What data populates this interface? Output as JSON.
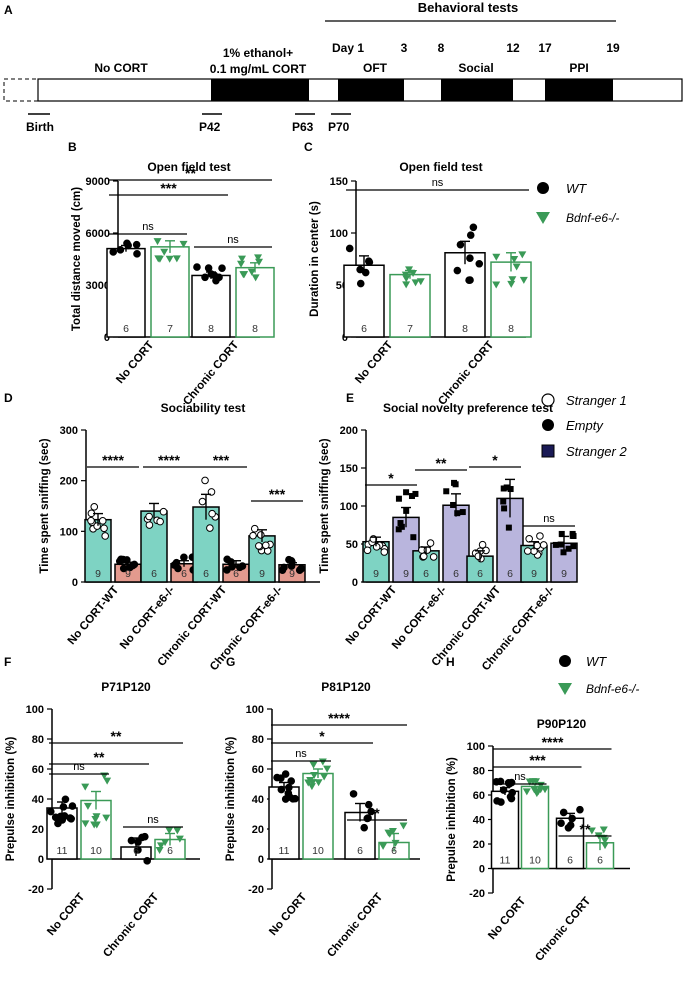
{
  "colors": {
    "black": "#000000",
    "green": "#3a9a57",
    "teal": "#7ed3c3",
    "salmon": "#e39a8e",
    "lavender": "#b9b5dd"
  },
  "timeline": {
    "panel": "A",
    "header": "Behavioral tests",
    "days": [
      "Day 1",
      "3",
      "8",
      "12",
      "17",
      "19"
    ],
    "phase_no_cort": "No CORT",
    "phase_cort_line1": "1% ethanol+",
    "phase_cort_line2": "0.1 mg/mL CORT",
    "tests": [
      "OFT",
      "Social",
      "PPI"
    ],
    "milestones": [
      "Birth",
      "P42",
      "P63",
      "P70"
    ]
  },
  "legend_top": {
    "wt": "WT",
    "ko": "Bdnf-e6-/-"
  },
  "legend_social": {
    "s1": "Stranger 1",
    "empty": "Empty",
    "s2": "Stranger 2"
  },
  "legend_ppi": {
    "wt": "WT",
    "ko": "Bdnf-e6-/-"
  },
  "chart_data": [
    {
      "id": "B",
      "type": "bar",
      "title": "Open field test",
      "ylabel": "Total distance moved (cm)",
      "ylim": [
        0,
        9000
      ],
      "yticks": [
        "0",
        "3000",
        "6000",
        "9000"
      ],
      "categories": [
        "No CORT",
        "Chronic CORT"
      ],
      "series": [
        {
          "name": "WT",
          "values": [
            5100,
            3550
          ],
          "sem": [
            180,
            200
          ],
          "n": [
            6,
            8
          ]
        },
        {
          "name": "Bdnf-e6-/-",
          "values": [
            5200,
            4000
          ],
          "sem": [
            350,
            280
          ],
          "n": [
            7,
            8
          ]
        }
      ],
      "annotations": [
        "ns",
        "ns",
        "***",
        "**"
      ]
    },
    {
      "id": "C",
      "type": "bar",
      "title": "Open field test",
      "ylabel": "Duration in center (s)",
      "ylim": [
        0,
        150
      ],
      "yticks": [
        "0",
        "50",
        "100",
        "150"
      ],
      "categories": [
        "No CORT",
        "Chronic CORT"
      ],
      "series": [
        {
          "name": "WT",
          "values": [
            69,
            81
          ],
          "sem": [
            9,
            11
          ],
          "n": [
            6,
            8
          ]
        },
        {
          "name": "Bdnf-e6-/-",
          "values": [
            60,
            72
          ],
          "sem": [
            4,
            9
          ],
          "n": [
            7,
            8
          ]
        }
      ],
      "annotations": [
        "ns"
      ]
    },
    {
      "id": "D",
      "type": "bar",
      "title": "Sociability test",
      "ylabel": "Time spent sniffing (sec)",
      "ylim": [
        0,
        300
      ],
      "yticks": [
        "0",
        "100",
        "200",
        "300"
      ],
      "categories": [
        "No CORT-WT",
        "No CORT-e6-/-",
        "Chronic CORT-WT",
        "Chronic CORT-e6-/-"
      ],
      "series": [
        {
          "name": "Stranger 1",
          "values": [
            123,
            140,
            148,
            91
          ],
          "sem": [
            12,
            15,
            25,
            12
          ],
          "n": [
            9,
            6,
            6,
            9
          ]
        },
        {
          "name": "Empty",
          "values": [
            35,
            36,
            35,
            34
          ],
          "sem": [
            4,
            6,
            7,
            4
          ],
          "n": [
            9,
            6,
            6,
            9
          ]
        }
      ],
      "annotations": [
        "****",
        "****",
        "***",
        "***"
      ]
    },
    {
      "id": "E",
      "type": "bar",
      "title": "Social novelty preference test",
      "ylabel": "Time spent sniffing (sec)",
      "ylim": [
        0,
        200
      ],
      "yticks": [
        "0",
        "50",
        "100",
        "150",
        "200"
      ],
      "categories": [
        "No CORT-WT",
        "No CORT-e6-/-",
        "Chronic CORT-WT",
        "Chronic CORT-e6-/-"
      ],
      "series": [
        {
          "name": "Stranger 1",
          "values": [
            53,
            41,
            34,
            48
          ],
          "sem": [
            6,
            5,
            7,
            5
          ],
          "n": [
            9,
            6,
            6,
            9
          ]
        },
        {
          "name": "Stranger 2",
          "values": [
            85,
            101,
            110,
            51
          ],
          "sem": [
            13,
            15,
            25,
            9
          ],
          "n": [
            9,
            6,
            6,
            9
          ]
        }
      ],
      "annotations": [
        "*",
        "**",
        "*",
        "ns"
      ]
    },
    {
      "id": "F",
      "type": "bar",
      "title": "P71P120",
      "ylabel": "Prepulse inhibition (%)",
      "ylim": [
        -20,
        100
      ],
      "yticks": [
        "-20",
        "0",
        "20",
        "40",
        "60",
        "80",
        "100"
      ],
      "categories": [
        "No CORT",
        "Chronic CORT"
      ],
      "series": [
        {
          "name": "WT",
          "values": [
            34,
            8
          ],
          "sem": [
            4,
            6
          ],
          "n": [
            11,
            6
          ]
        },
        {
          "name": "Bdnf-e6-/-",
          "values": [
            39,
            13
          ],
          "sem": [
            6,
            4
          ],
          "n": [
            10,
            6
          ]
        }
      ],
      "annotations": [
        "ns",
        "ns",
        "**",
        "**"
      ]
    },
    {
      "id": "G",
      "type": "bar",
      "title": "P81P120",
      "ylabel": "Prepulse inhibition (%)",
      "ylim": [
        -20,
        100
      ],
      "yticks": [
        "-20",
        "0",
        "20",
        "40",
        "60",
        "80",
        "100"
      ],
      "categories": [
        "No CORT",
        "Chronic CORT"
      ],
      "series": [
        {
          "name": "WT",
          "values": [
            48,
            31
          ],
          "sem": [
            3,
            6
          ],
          "n": [
            11,
            6
          ]
        },
        {
          "name": "Bdnf-e6-/-",
          "values": [
            57,
            11
          ],
          "sem": [
            3,
            6
          ],
          "n": [
            10,
            6
          ]
        }
      ],
      "annotations": [
        "ns",
        "*",
        "*",
        "****"
      ]
    },
    {
      "id": "H",
      "type": "bar",
      "title": "P90P120",
      "ylabel": "Prepulse inhibition (%)",
      "ylim": [
        -20,
        100
      ],
      "yticks": [
        "-20",
        "0",
        "20",
        "40",
        "60",
        "80",
        "100"
      ],
      "categories": [
        "No CORT",
        "Chronic CORT"
      ],
      "series": [
        {
          "name": "WT",
          "values": [
            63,
            41
          ],
          "sem": [
            3,
            4
          ],
          "n": [
            11,
            6
          ]
        },
        {
          "name": "Bdnf-e6-/-",
          "values": [
            67,
            21
          ],
          "sem": [
            2,
            6
          ],
          "n": [
            10,
            6
          ]
        }
      ],
      "annotations": [
        "ns",
        "**",
        "***",
        "****"
      ]
    }
  ]
}
